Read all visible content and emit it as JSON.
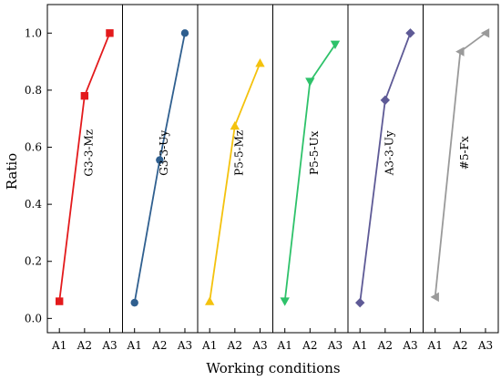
{
  "chart_data": {
    "type": "line",
    "ylabel": "Ratio",
    "xlabel": "Working conditions",
    "ylim": [
      -0.05,
      1.1
    ],
    "yticks": [
      "0.0",
      "0.2",
      "0.4",
      "0.6",
      "0.8",
      "1.0"
    ],
    "ytick_values": [
      0.0,
      0.2,
      0.4,
      0.6,
      0.8,
      1.0
    ],
    "categories": [
      "A1",
      "A2",
      "A3"
    ],
    "grid": false,
    "panels": [
      {
        "label": "G3-3-Mz",
        "values": [
          0.06,
          0.78,
          1.0
        ],
        "color": "#e31a1c",
        "marker": "square"
      },
      {
        "label": "G3-3-Uy",
        "values": [
          0.055,
          0.555,
          1.0
        ],
        "color": "#2f5f8f",
        "marker": "circle"
      },
      {
        "label": "P5-5-Mz",
        "values": [
          0.06,
          0.675,
          0.895
        ],
        "color": "#f4c20d",
        "marker": "triangle-up"
      },
      {
        "label": "P5-5-Ux",
        "values": [
          0.06,
          0.83,
          0.96
        ],
        "color": "#2ec26a",
        "marker": "triangle-down"
      },
      {
        "label": "A3-3-Uy",
        "values": [
          0.055,
          0.765,
          1.0
        ],
        "color": "#5e5a96",
        "marker": "diamond"
      },
      {
        "label": "#5-Fx",
        "values": [
          0.075,
          0.935,
          1.0
        ],
        "color": "#9a9a9a",
        "marker": "triangle-left"
      }
    ]
  }
}
